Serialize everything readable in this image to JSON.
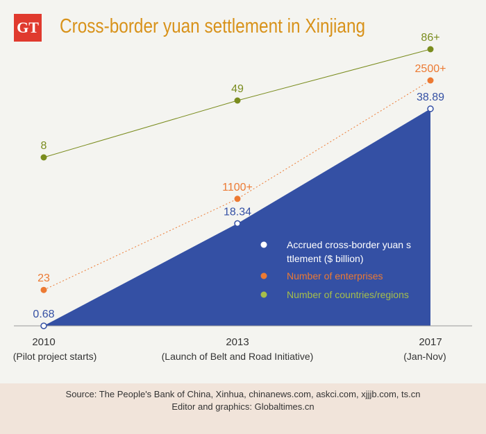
{
  "logo": "GT",
  "chart_data": {
    "type": "area+line",
    "title": "Cross-border yuan settlement in Xinjiang",
    "categories": [
      "2010",
      "2013",
      "2017"
    ],
    "category_notes": [
      "(Pilot project starts)",
      "(Launch of Belt and Road Initiative)",
      "(Jan-Nov)"
    ],
    "series": [
      {
        "name": "Accrued cross-border yuan settlement ($ billion)",
        "values": [
          0.68,
          18.34,
          38.89
        ],
        "labels": [
          "0.68",
          "18.34",
          "38.89"
        ],
        "color": "#3450a4"
      },
      {
        "name": "Number of enterprises",
        "values": [
          23,
          1100,
          2500
        ],
        "labels": [
          "23",
          "1100+",
          "2500+"
        ],
        "color": "#ec7a33"
      },
      {
        "name": "Number of countries/regions",
        "values": [
          8,
          49,
          86
        ],
        "labels": [
          "8",
          "49",
          "86+"
        ],
        "color": "#7a8c1e",
        "legend_color": "#a6bf4a"
      }
    ],
    "legend": "center-right"
  },
  "footer": {
    "source": "Source: The People's Bank of China, Xinhua, chinanews.com, askci.com, xjjjb.com, ts.cn",
    "editor": "Editor and graphics: Globaltimes.cn"
  }
}
